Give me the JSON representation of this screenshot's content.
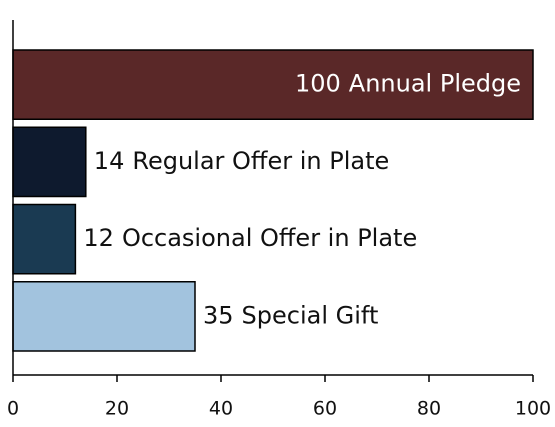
{
  "chart_data": {
    "type": "barh",
    "categories": [
      "Annual Pledge",
      "Regular Offer in Plate",
      "Occasional Offer in Plate",
      "Special Gift"
    ],
    "values": [
      100,
      14,
      12,
      35
    ],
    "colors": [
      "#5a2828",
      "#0e1a2e",
      "#1a3a52",
      "#a2c3de"
    ],
    "xlim": [
      0,
      100
    ],
    "xticks": [
      0,
      20,
      40,
      60,
      80,
      100
    ]
  }
}
